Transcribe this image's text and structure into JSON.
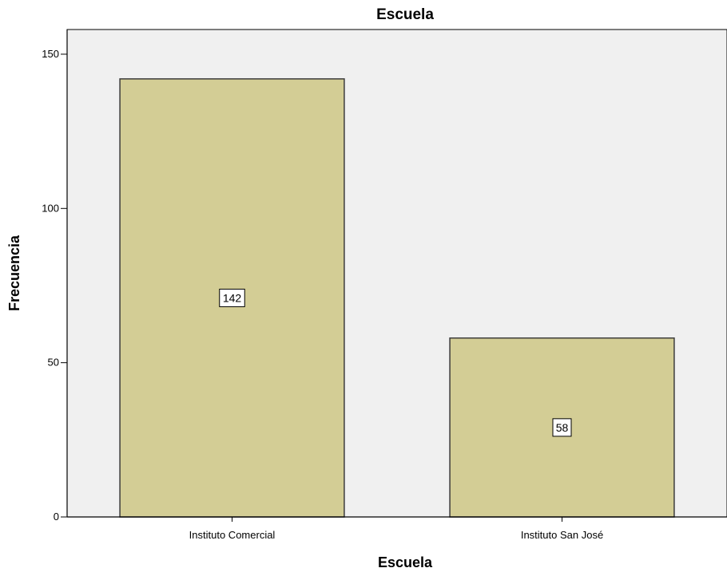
{
  "chart_data": {
    "type": "bar",
    "title": "Escuela",
    "xlabel": "Escuela",
    "ylabel": "Frecuencia",
    "categories": [
      "Instituto Comercial",
      "Instituto San José"
    ],
    "values": [
      142,
      58
    ],
    "data_labels": [
      "142",
      "58"
    ],
    "ylim": [
      0,
      158
    ],
    "yticks": [
      0,
      50,
      100,
      150
    ],
    "ytick_labels": [
      "0",
      "50",
      "100",
      "150"
    ],
    "grid": false,
    "legend": "none"
  },
  "colors": {
    "plot_background": "#f0f0f0",
    "bar_fill": "#d3cd95",
    "bar_stroke": "#3c3c3c",
    "axis": "#000000",
    "label_box_fill": "#ffffff"
  }
}
